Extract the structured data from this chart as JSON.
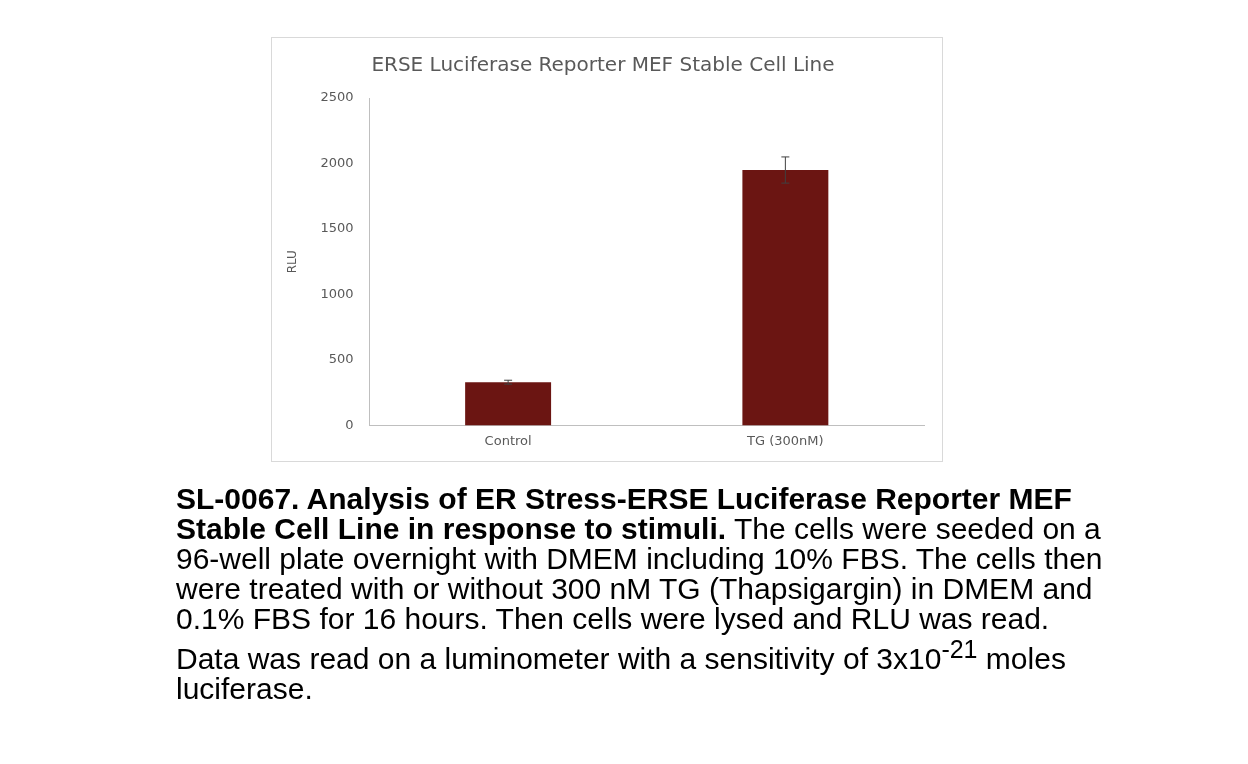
{
  "chart_data": {
    "type": "bar",
    "title": "ERSE Luciferase Reporter MEF Stable Cell Line",
    "ylabel": "RLU",
    "categories": [
      "Control",
      "TG (300nM)"
    ],
    "values": [
      330,
      1950
    ],
    "errors": [
      15,
      100
    ],
    "color": "#6b1512",
    "ylim": [
      0,
      2500
    ],
    "yticks": [
      0,
      500,
      1000,
      1500,
      2000,
      2500
    ],
    "grid": false,
    "legend": false,
    "annotations": [
      "SL-0067. Analysis of ER Stress-ERSE Luciferase Reporter MEF Stable Cell Line in response to stimuli.",
      "The cells were seeded on a 96-well plate overnight with DMEM including 10% FBS. The cells then were treated with or without 300 nM TG (Thapsigargin) in DMEM and 0.1% FBS for 16 hours. Then cells were lysed and RLU was read. Data was read on a luminometer with a sensitivity of 3x10$^{-21}$ moles luciferase."
    ]
  }
}
